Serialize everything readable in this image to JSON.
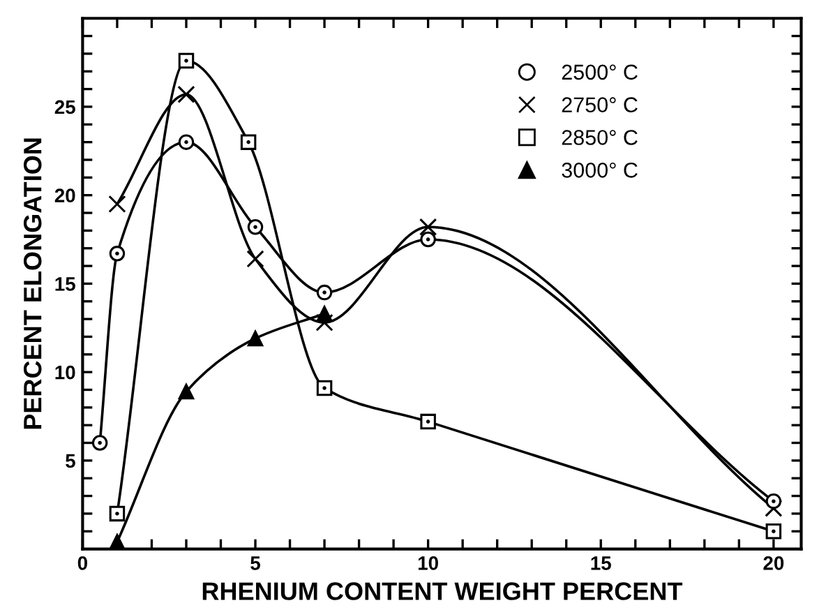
{
  "chart_data": {
    "type": "line",
    "xlabel": "RHENIUM CONTENT WEIGHT PERCENT",
    "ylabel": "PERCENT ELONGATION",
    "xlim": [
      0,
      20.8
    ],
    "ylim": [
      0,
      30
    ],
    "xticks": [
      0,
      {
        "value": 1,
        "label": null
      },
      {
        "value": 2,
        "label": null
      },
      {
        "value": 3,
        "label": null
      },
      {
        "value": 4,
        "label": null
      },
      5,
      {
        "value": 6,
        "label": null
      },
      {
        "value": 7,
        "label": null
      },
      {
        "value": 8,
        "label": null
      },
      {
        "value": 9,
        "label": null
      },
      10,
      {
        "value": 11,
        "label": null
      },
      {
        "value": 12,
        "label": null
      },
      {
        "value": 13,
        "label": null
      },
      {
        "value": 14,
        "label": null
      },
      15,
      {
        "value": 16,
        "label": null
      },
      {
        "value": 17,
        "label": null
      },
      {
        "value": 18,
        "label": null
      },
      {
        "value": 19,
        "label": null
      },
      20
    ],
    "yticks": [
      {
        "value": 1,
        "label": null
      },
      {
        "value": 2,
        "label": null
      },
      {
        "value": 3,
        "label": null
      },
      {
        "value": 4,
        "label": null
      },
      5,
      {
        "value": 6,
        "label": null
      },
      {
        "value": 7,
        "label": null
      },
      {
        "value": 8,
        "label": null
      },
      {
        "value": 9,
        "label": null
      },
      10,
      {
        "value": 11,
        "label": null
      },
      {
        "value": 12,
        "label": null
      },
      {
        "value": 13,
        "label": null
      },
      {
        "value": 14,
        "label": null
      },
      15,
      {
        "value": 16,
        "label": null
      },
      {
        "value": 17,
        "label": null
      },
      {
        "value": 18,
        "label": null
      },
      {
        "value": 19,
        "label": null
      },
      20,
      {
        "value": 21,
        "label": null
      },
      {
        "value": 22,
        "label": null
      },
      {
        "value": 23,
        "label": null
      },
      {
        "value": 24,
        "label": null
      },
      25,
      {
        "value": 26,
        "label": null
      },
      {
        "value": 27,
        "label": null
      },
      {
        "value": 28,
        "label": null
      },
      {
        "value": 29,
        "label": null
      }
    ],
    "grid": false,
    "legend": "top right",
    "line_style": "solid",
    "series": [
      {
        "name": "2500° C",
        "color": "#000000",
        "marker": "circle",
        "x": [
          0.5,
          1,
          3,
          5,
          7,
          10,
          20
        ],
        "values": [
          6.0,
          16.7,
          23.0,
          18.2,
          14.5,
          17.5,
          2.7
        ]
      },
      {
        "name": "2750° C",
        "color": "#000000",
        "marker": "cross",
        "x": [
          1,
          3,
          5,
          7,
          10,
          20
        ],
        "values": [
          19.5,
          25.7,
          16.4,
          12.8,
          18.2,
          2.3
        ]
      },
      {
        "name": "2850° C",
        "color": "#000000",
        "marker": "square",
        "x": [
          1,
          3,
          4.8,
          7,
          10,
          20
        ],
        "values": [
          2.0,
          27.6,
          23.0,
          9.1,
          7.2,
          1.0
        ]
      },
      {
        "name": "3000° C",
        "color": "#000000",
        "marker": "triangle",
        "x": [
          1,
          3,
          5,
          7
        ],
        "values": [
          0.4,
          8.9,
          11.9,
          13.3
        ]
      }
    ]
  }
}
